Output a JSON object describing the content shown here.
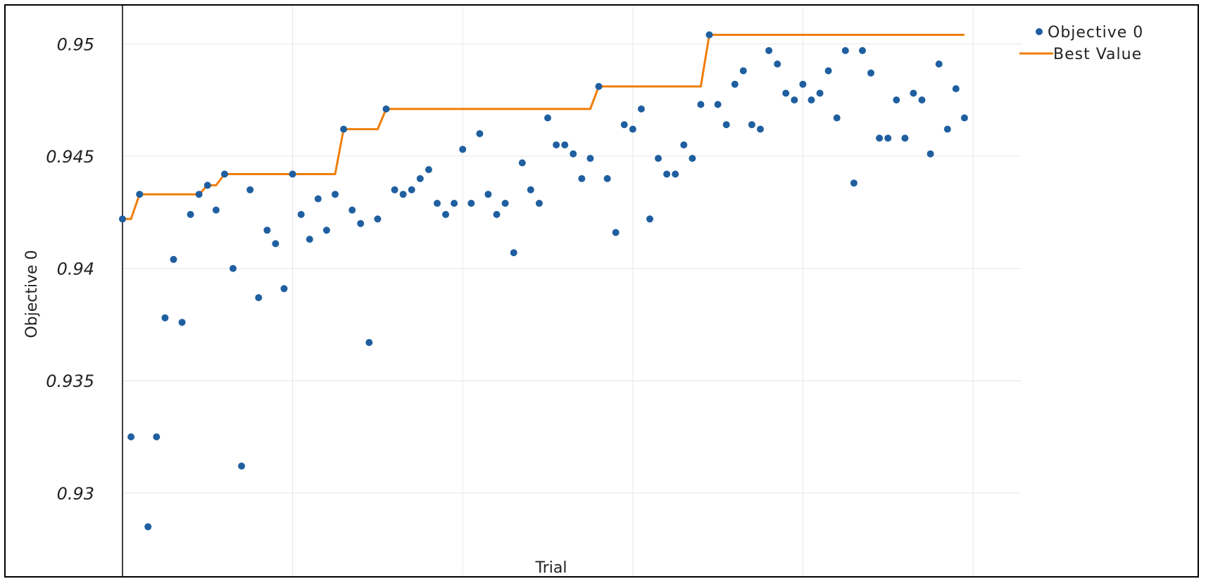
{
  "chart_data": {
    "type": "scatter",
    "xlabel": "Trial",
    "ylabel": "Objective 0",
    "xlim": [
      0,
      100
    ],
    "ylim": [
      0.9263,
      0.9517
    ],
    "yticks": [
      0.93,
      0.935,
      0.94,
      0.945,
      0.95
    ],
    "ytick_labels": [
      "0.93",
      "0.935",
      "0.94",
      "0.945",
      "0.95"
    ],
    "grid": true,
    "legend_position": "top-right",
    "colors": {
      "objective": "#1f5fa0",
      "best": "#f07d0a",
      "grid": "#e6e6e6"
    },
    "series": [
      {
        "name": "Objective 0",
        "kind": "markers",
        "x": [
          0,
          1,
          2,
          3,
          4,
          5,
          6,
          7,
          8,
          9,
          10,
          11,
          12,
          13,
          14,
          15,
          16,
          17,
          18,
          19,
          20,
          21,
          22,
          23,
          24,
          25,
          26,
          27,
          28,
          29,
          30,
          31,
          32,
          33,
          34,
          35,
          36,
          37,
          38,
          39,
          40,
          41,
          42,
          43,
          44,
          45,
          46,
          47,
          48,
          49,
          50,
          51,
          52,
          53,
          54,
          55,
          56,
          57,
          58,
          59,
          60,
          61,
          62,
          63,
          64,
          65,
          66,
          67,
          68,
          69,
          70,
          71,
          72,
          73,
          74,
          75,
          76,
          77,
          78,
          79,
          80,
          81,
          82,
          83,
          84,
          85,
          86,
          87,
          88,
          89,
          90,
          91,
          92,
          93,
          94,
          95,
          96,
          97,
          98,
          99
        ],
        "y": [
          0.9422,
          0.9325,
          0.9433,
          0.9285,
          0.9325,
          0.9378,
          0.9404,
          0.9376,
          0.9424,
          0.9433,
          0.9437,
          0.9426,
          0.9442,
          0.94,
          0.9312,
          0.9435,
          0.9387,
          0.9417,
          0.9411,
          0.9391,
          0.9442,
          0.9424,
          0.9413,
          0.9431,
          0.9417,
          0.9433,
          0.9462,
          0.9426,
          0.942,
          0.9367,
          0.9422,
          0.9471,
          0.9435,
          0.9433,
          0.9435,
          0.944,
          0.9444,
          0.9429,
          0.9424,
          0.9429,
          0.9453,
          0.9429,
          0.946,
          0.9433,
          0.9424,
          0.9429,
          0.9407,
          0.9447,
          0.9435,
          0.9429,
          0.9467,
          0.9455,
          0.9455,
          0.9451,
          0.944,
          0.9449,
          0.9481,
          0.944,
          0.9416,
          0.9464,
          0.9462,
          0.9471,
          0.9422,
          0.9449,
          0.9442,
          0.9442,
          0.9455,
          0.9449,
          0.9473,
          0.9504,
          0.9473,
          0.9464,
          0.9482,
          0.9488,
          0.9464,
          0.9462,
          0.9497,
          0.9491,
          0.9478,
          0.9475,
          0.9482,
          0.9475,
          0.9478,
          0.9488,
          0.9467,
          0.9497,
          0.9438,
          0.9497,
          0.9487,
          0.9458,
          0.9458,
          0.9475,
          0.9458,
          0.9478,
          0.9475,
          0.9451,
          0.9491,
          0.9462,
          0.948,
          0.9467
        ]
      },
      {
        "name": "Best Value",
        "kind": "step-line",
        "x": [
          0,
          1,
          2,
          3,
          4,
          5,
          6,
          7,
          8,
          9,
          10,
          11,
          12,
          13,
          14,
          15,
          16,
          17,
          18,
          19,
          20,
          21,
          22,
          23,
          24,
          25,
          26,
          27,
          28,
          29,
          30,
          31,
          32,
          33,
          34,
          35,
          36,
          37,
          38,
          39,
          40,
          41,
          42,
          43,
          44,
          45,
          46,
          47,
          48,
          49,
          50,
          51,
          52,
          53,
          54,
          55,
          56,
          57,
          58,
          59,
          60,
          61,
          62,
          63,
          64,
          65,
          66,
          67,
          68,
          69,
          70,
          71,
          72,
          73,
          74,
          75,
          76,
          77,
          78,
          79,
          80,
          81,
          82,
          83,
          84,
          85,
          86,
          87,
          88,
          89,
          90,
          91,
          92,
          93,
          94,
          95,
          96,
          97,
          98,
          99
        ],
        "y": [
          0.9422,
          0.9422,
          0.9433,
          0.9433,
          0.9433,
          0.9433,
          0.9433,
          0.9433,
          0.9433,
          0.9433,
          0.9437,
          0.9437,
          0.9442,
          0.9442,
          0.9442,
          0.9442,
          0.9442,
          0.9442,
          0.9442,
          0.9442,
          0.9442,
          0.9442,
          0.9442,
          0.9442,
          0.9442,
          0.9442,
          0.9462,
          0.9462,
          0.9462,
          0.9462,
          0.9462,
          0.9471,
          0.9471,
          0.9471,
          0.9471,
          0.9471,
          0.9471,
          0.9471,
          0.9471,
          0.9471,
          0.9471,
          0.9471,
          0.9471,
          0.9471,
          0.9471,
          0.9471,
          0.9471,
          0.9471,
          0.9471,
          0.9471,
          0.9471,
          0.9471,
          0.9471,
          0.9471,
          0.9471,
          0.9471,
          0.9481,
          0.9481,
          0.9481,
          0.9481,
          0.9481,
          0.9481,
          0.9481,
          0.9481,
          0.9481,
          0.9481,
          0.9481,
          0.9481,
          0.9481,
          0.9504,
          0.9504,
          0.9504,
          0.9504,
          0.9504,
          0.9504,
          0.9504,
          0.9504,
          0.9504,
          0.9504,
          0.9504,
          0.9504,
          0.9504,
          0.9504,
          0.9504,
          0.9504,
          0.9504,
          0.9504,
          0.9504,
          0.9504,
          0.9504,
          0.9504,
          0.9504,
          0.9504,
          0.9504,
          0.9504,
          0.9504,
          0.9504,
          0.9504,
          0.9504,
          0.9504
        ]
      }
    ]
  }
}
